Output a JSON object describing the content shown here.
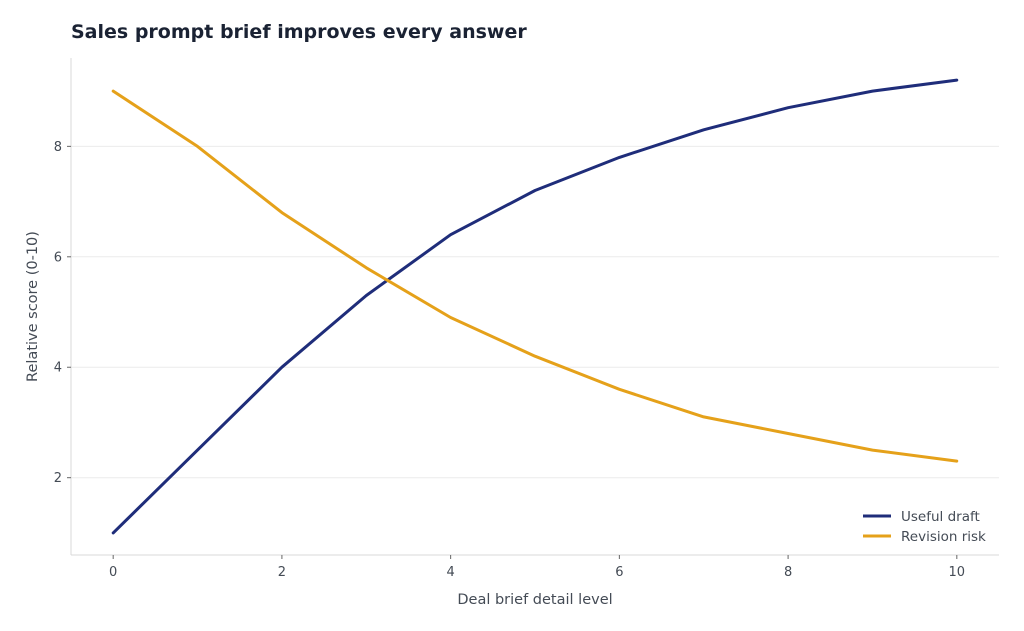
{
  "chart_data": {
    "type": "line",
    "title": "Sales prompt brief improves every answer",
    "xlabel": "Deal brief detail level",
    "ylabel": "Relative score (0-10)",
    "x": [
      0,
      1,
      2,
      3,
      4,
      5,
      6,
      7,
      8,
      9,
      10
    ],
    "xlim": [
      -0.5,
      10.5
    ],
    "ylim": [
      0.6,
      9.6
    ],
    "xticks": [
      0,
      2,
      4,
      6,
      8,
      10
    ],
    "yticks": [
      2,
      4,
      6,
      8
    ],
    "grid": "horizontal",
    "legend_position": "bottom-right",
    "series": [
      {
        "name": "Useful draft",
        "color": "#1f2d7a",
        "values": [
          1.0,
          2.5,
          4.0,
          5.3,
          6.4,
          7.2,
          7.8,
          8.3,
          8.7,
          9.0,
          9.2
        ]
      },
      {
        "name": "Revision risk",
        "color": "#e5a11a",
        "values": [
          9.0,
          8.0,
          6.8,
          5.8,
          4.9,
          4.2,
          3.6,
          3.1,
          2.8,
          2.5,
          2.3
        ]
      }
    ]
  }
}
